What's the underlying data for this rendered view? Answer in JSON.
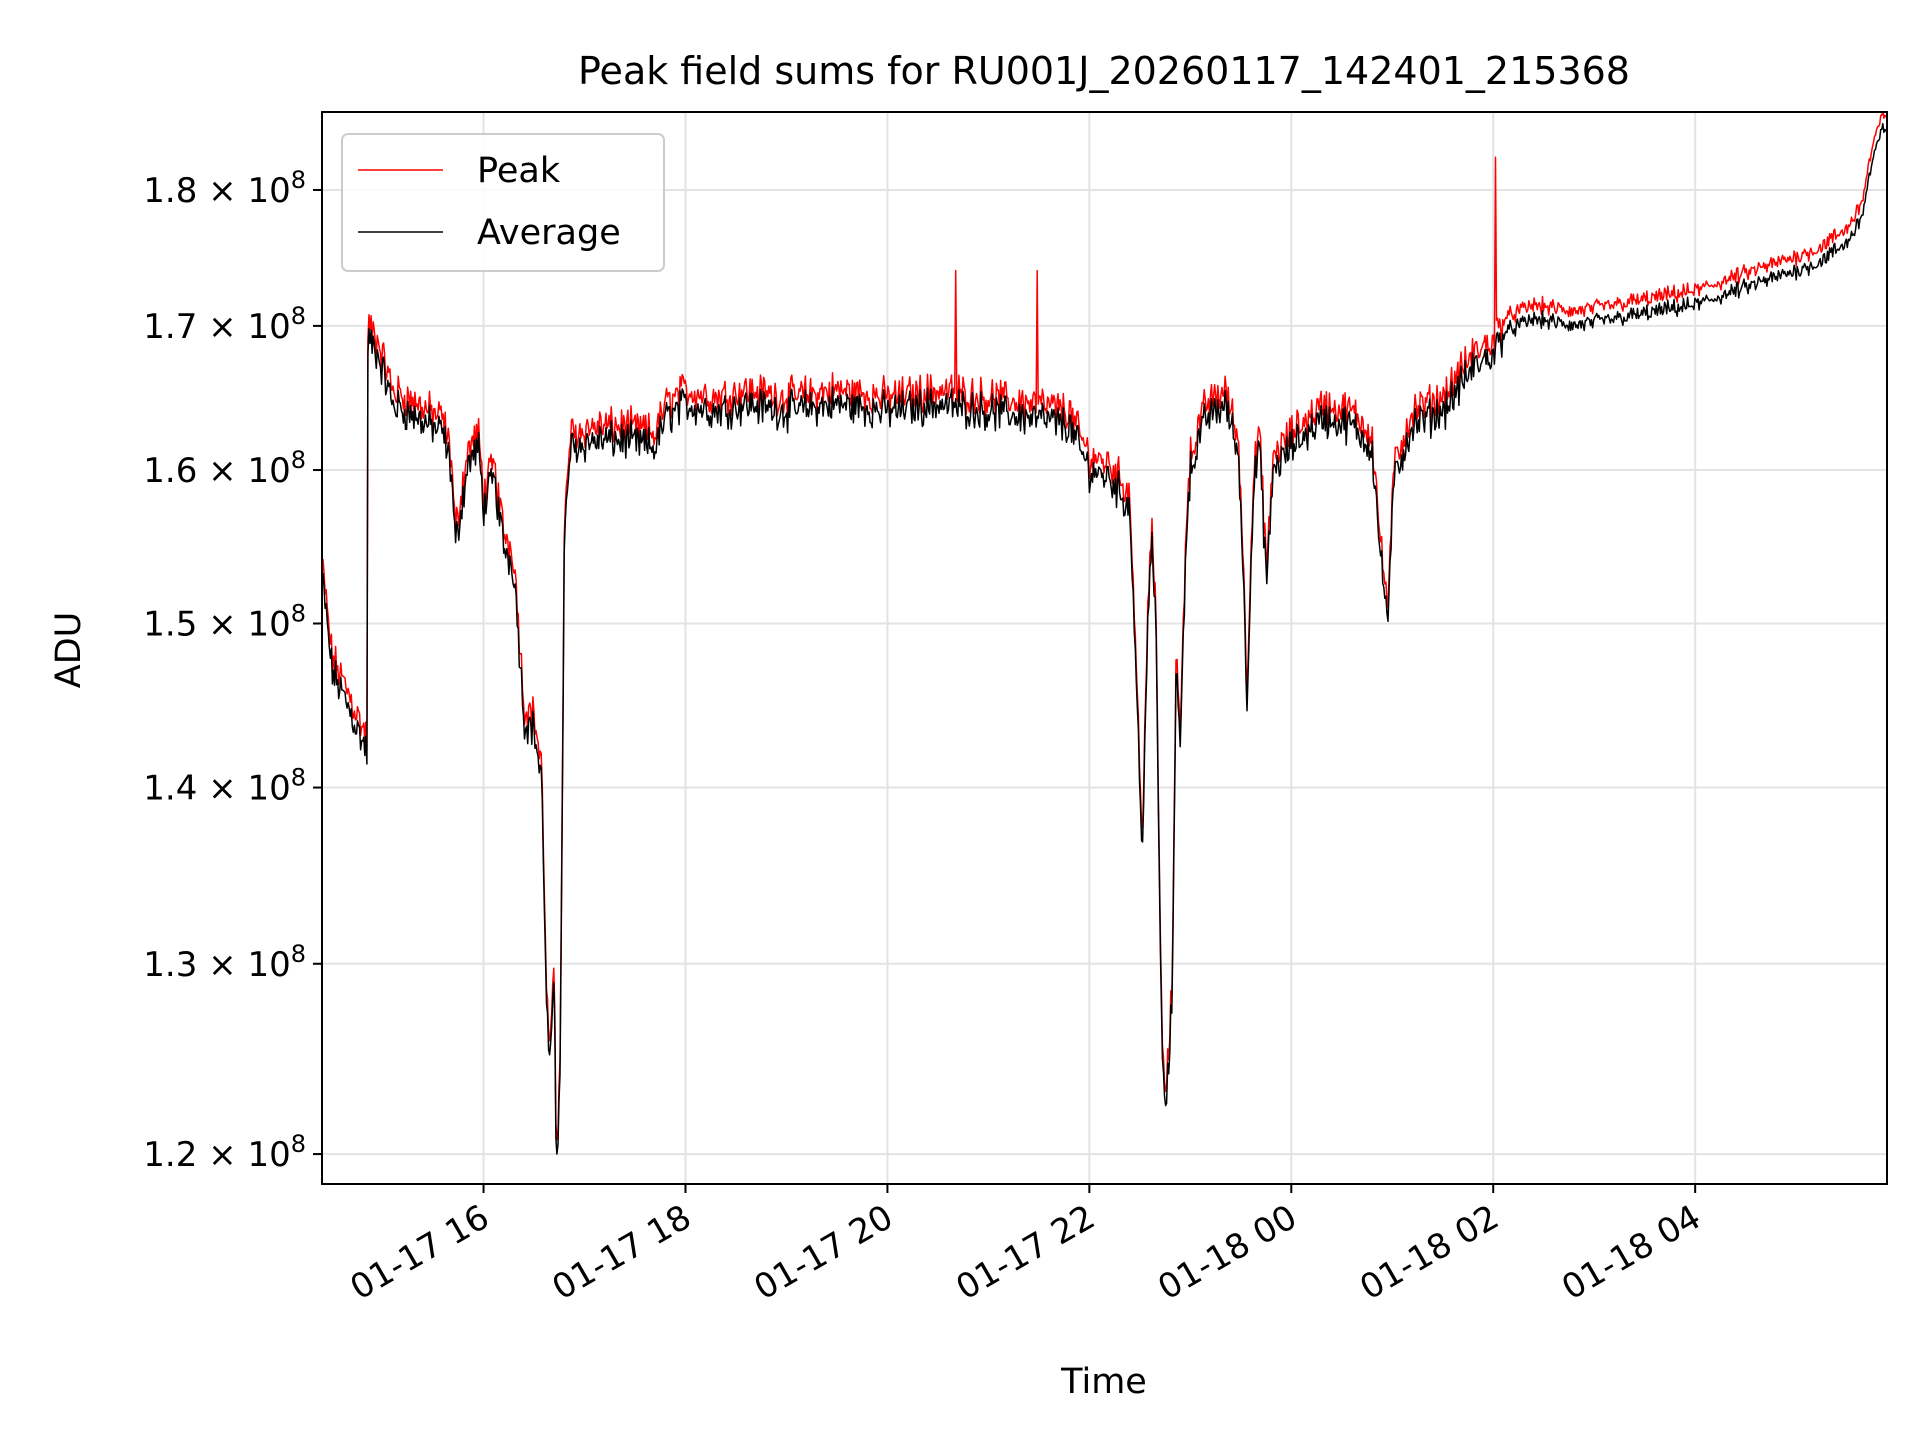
{
  "chart_data": {
    "type": "line",
    "title": "Peak field sums for RU001J_20260117_142401_215368",
    "xlabel": "Time",
    "ylabel": "ADU",
    "y_scale": "log",
    "x_range_hours": [
      14.4,
      29.9
    ],
    "y_range": [
      118500000,
      186000000
    ],
    "grid": true,
    "legend_position": "top-left",
    "x_ticks": [
      {
        "hour": 16,
        "label": "01-17 16"
      },
      {
        "hour": 18,
        "label": "01-17 18"
      },
      {
        "hour": 20,
        "label": "01-17 20"
      },
      {
        "hour": 22,
        "label": "01-17 22"
      },
      {
        "hour": 24,
        "label": "01-18 00"
      },
      {
        "hour": 26,
        "label": "01-18 02"
      },
      {
        "hour": 28,
        "label": "01-18 04"
      }
    ],
    "y_ticks": [
      {
        "value": 120000000,
        "mantissa": "1.2",
        "exp": "8"
      },
      {
        "value": 130000000,
        "mantissa": "1.3",
        "exp": "8"
      },
      {
        "value": 140000000,
        "mantissa": "1.4",
        "exp": "8"
      },
      {
        "value": 150000000,
        "mantissa": "1.5",
        "exp": "8"
      },
      {
        "value": 160000000,
        "mantissa": "1.6",
        "exp": "8"
      },
      {
        "value": 170000000,
        "mantissa": "1.7",
        "exp": "8"
      },
      {
        "value": 180000000,
        "mantissa": "1.8",
        "exp": "8"
      }
    ],
    "series": [
      {
        "name": "Peak",
        "color": "#ff0000",
        "noise_amplitude": 0.012,
        "spikes": [
          [
            20.68,
            174000000
          ],
          [
            21.48,
            174000000
          ],
          [
            26.02,
            182500000
          ]
        ],
        "offset_ratio": 1.006
      },
      {
        "name": "Average",
        "color": "#000000",
        "noise_amplitude": 0.012,
        "offset_ratio": 1.0
      }
    ],
    "baseline": [
      [
        14.4,
        153000000
      ],
      [
        14.5,
        147000000
      ],
      [
        14.65,
        145000000
      ],
      [
        14.85,
        142000000
      ],
      [
        14.78,
        142500000
      ],
      [
        14.8,
        141000000
      ],
      [
        14.82,
        160000000
      ],
      [
        14.86,
        169000000
      ],
      [
        14.95,
        168000000
      ],
      [
        15.1,
        164500000
      ],
      [
        15.35,
        163500000
      ],
      [
        15.6,
        162500000
      ],
      [
        15.68,
        160000000
      ],
      [
        15.72,
        155000000
      ],
      [
        15.85,
        160500000
      ],
      [
        15.95,
        161500000
      ],
      [
        16.0,
        157500000
      ],
      [
        16.1,
        159500000
      ],
      [
        16.2,
        155000000
      ],
      [
        16.3,
        153500000
      ],
      [
        16.36,
        148000000
      ],
      [
        16.4,
        144000000
      ],
      [
        16.5,
        143500000
      ],
      [
        16.58,
        140000000
      ],
      [
        16.62,
        128000000
      ],
      [
        16.66,
        124000000
      ],
      [
        16.7,
        130000000
      ],
      [
        16.72,
        119500000
      ],
      [
        16.76,
        124000000
      ],
      [
        16.8,
        155000000
      ],
      [
        16.86,
        161500000
      ],
      [
        17.1,
        162000000
      ],
      [
        17.4,
        162000000
      ],
      [
        17.7,
        161500000
      ],
      [
        17.8,
        163500000
      ],
      [
        18.0,
        164500000
      ],
      [
        18.3,
        164000000
      ],
      [
        18.6,
        164500000
      ],
      [
        19.0,
        164000000
      ],
      [
        19.5,
        164500000
      ],
      [
        20.0,
        164000000
      ],
      [
        20.5,
        164500000
      ],
      [
        21.0,
        164000000
      ],
      [
        21.5,
        163500000
      ],
      [
        21.8,
        163000000
      ],
      [
        22.0,
        160000000
      ],
      [
        22.2,
        159500000
      ],
      [
        22.4,
        157500000
      ],
      [
        22.48,
        144000000
      ],
      [
        22.52,
        136000000
      ],
      [
        22.58,
        150000000
      ],
      [
        22.62,
        155000000
      ],
      [
        22.66,
        150000000
      ],
      [
        22.7,
        131000000
      ],
      [
        22.74,
        122000000
      ],
      [
        22.78,
        124000000
      ],
      [
        22.82,
        128000000
      ],
      [
        22.86,
        148000000
      ],
      [
        22.9,
        142000000
      ],
      [
        22.96,
        156000000
      ],
      [
        23.0,
        160000000
      ],
      [
        23.15,
        163500000
      ],
      [
        23.35,
        164500000
      ],
      [
        23.48,
        161000000
      ],
      [
        23.54,
        150000000
      ],
      [
        23.56,
        145000000
      ],
      [
        23.62,
        158000000
      ],
      [
        23.68,
        162000000
      ],
      [
        23.72,
        157000000
      ],
      [
        23.76,
        152500000
      ],
      [
        23.82,
        160000000
      ],
      [
        24.0,
        161500000
      ],
      [
        24.3,
        163500000
      ],
      [
        24.6,
        163000000
      ],
      [
        24.8,
        161500000
      ],
      [
        24.9,
        153000000
      ],
      [
        24.96,
        150500000
      ],
      [
        25.02,
        159500000
      ],
      [
        25.2,
        163000000
      ],
      [
        25.5,
        164000000
      ],
      [
        25.8,
        167000000
      ],
      [
        26.0,
        168000000
      ],
      [
        26.1,
        169500000
      ],
      [
        26.4,
        170500000
      ],
      [
        26.8,
        170000000
      ],
      [
        27.2,
        170500000
      ],
      [
        27.6,
        171000000
      ],
      [
        28.0,
        171500000
      ],
      [
        28.4,
        172500000
      ],
      [
        28.8,
        173500000
      ],
      [
        29.2,
        174500000
      ],
      [
        29.5,
        176000000
      ],
      [
        29.65,
        178000000
      ],
      [
        29.75,
        182000000
      ],
      [
        29.85,
        184500000
      ],
      [
        29.9,
        185000000
      ]
    ]
  }
}
